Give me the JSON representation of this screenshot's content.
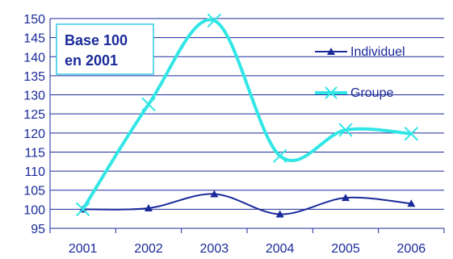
{
  "chart_data": {
    "type": "line",
    "categories": [
      "2001",
      "2002",
      "2003",
      "2004",
      "2005",
      "2006"
    ],
    "series": [
      {
        "name": "Individuel",
        "values": [
          100,
          100.3,
          104,
          98.7,
          103,
          101.5
        ],
        "color": "#1a2a9a",
        "marker": "triangle"
      },
      {
        "name": "Groupe",
        "values": [
          100,
          127.5,
          149.5,
          114,
          120.8,
          119.8
        ],
        "color": "#33e6e6",
        "marker": "x"
      }
    ],
    "yticks": [
      "150",
      "145",
      "140",
      "135",
      "130",
      "125",
      "120",
      "115",
      "110",
      "105",
      "100",
      "95"
    ],
    "ylim": [
      95,
      150
    ],
    "grid": true,
    "legend_position": "right",
    "annotation": {
      "line1": "Base 100",
      "line2": "en 2001"
    }
  }
}
